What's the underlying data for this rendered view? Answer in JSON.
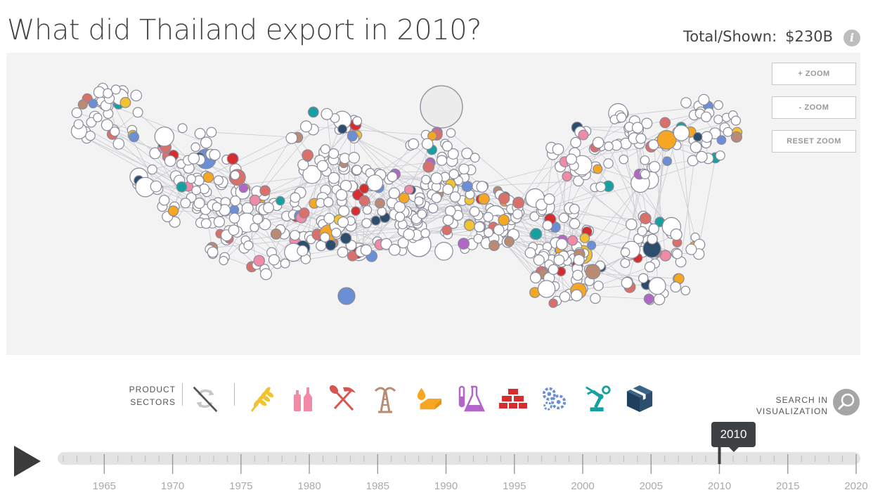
{
  "header": {
    "title": "What did Thailand export in 2010?",
    "total_label": "Total/Shown:",
    "total_value": "$230B",
    "info_glyph": "i"
  },
  "zoom": {
    "zoom_in": "+ ZOOM",
    "zoom_out": "- ZOOM",
    "reset": "RESET ZOOM"
  },
  "sectors": {
    "label_line1": "PRODUCT",
    "label_line2": "SECTORS",
    "items": [
      {
        "name": "all-sectors",
        "icon": "recycle-crossed-icon",
        "color": "#c8c8c8"
      },
      {
        "name": "agriculture",
        "icon": "wheat-icon",
        "color": "#f1c232"
      },
      {
        "name": "food-beverages",
        "icon": "bottles-icon",
        "color": "#f08aa6"
      },
      {
        "name": "minerals",
        "icon": "shovel-pickaxe-icon",
        "color": "#d9534f"
      },
      {
        "name": "oil",
        "icon": "oil-derrick-icon",
        "color": "#b98b73"
      },
      {
        "name": "chemicals-fats",
        "icon": "oil-drop-butter-icon",
        "color": "#f5a623"
      },
      {
        "name": "chemicals",
        "icon": "flask-icon",
        "color": "#b266c8"
      },
      {
        "name": "materials",
        "icon": "bricks-icon",
        "color": "#d62e2e"
      },
      {
        "name": "machinery",
        "icon": "gears-icon",
        "color": "#6b8fd4"
      },
      {
        "name": "electronics",
        "icon": "robot-arm-icon",
        "color": "#16a0a0"
      },
      {
        "name": "other",
        "icon": "box-icon",
        "color": "#2c4d6b"
      }
    ]
  },
  "search": {
    "line1": "SEARCH IN",
    "line2": "VISUALIZATION"
  },
  "timeline": {
    "current_year": "2010",
    "start": 1962,
    "end": 2020,
    "labels": [
      "1965",
      "1970",
      "1975",
      "1980",
      "1985",
      "1990",
      "1995",
      "2000",
      "2005",
      "2010",
      "2015",
      "2020"
    ]
  },
  "colors": {
    "node_fill": "#ffffff",
    "node_stroke": "#8a8a99",
    "edge": "#c9c9d2",
    "background": "#f3f3f3",
    "palette": [
      "#d62e2e",
      "#6b8fd4",
      "#f1c232",
      "#16a0a0",
      "#b266c8",
      "#d9706a",
      "#f5a623",
      "#2c4d6b",
      "#f08aa6",
      "#b98b73"
    ]
  }
}
